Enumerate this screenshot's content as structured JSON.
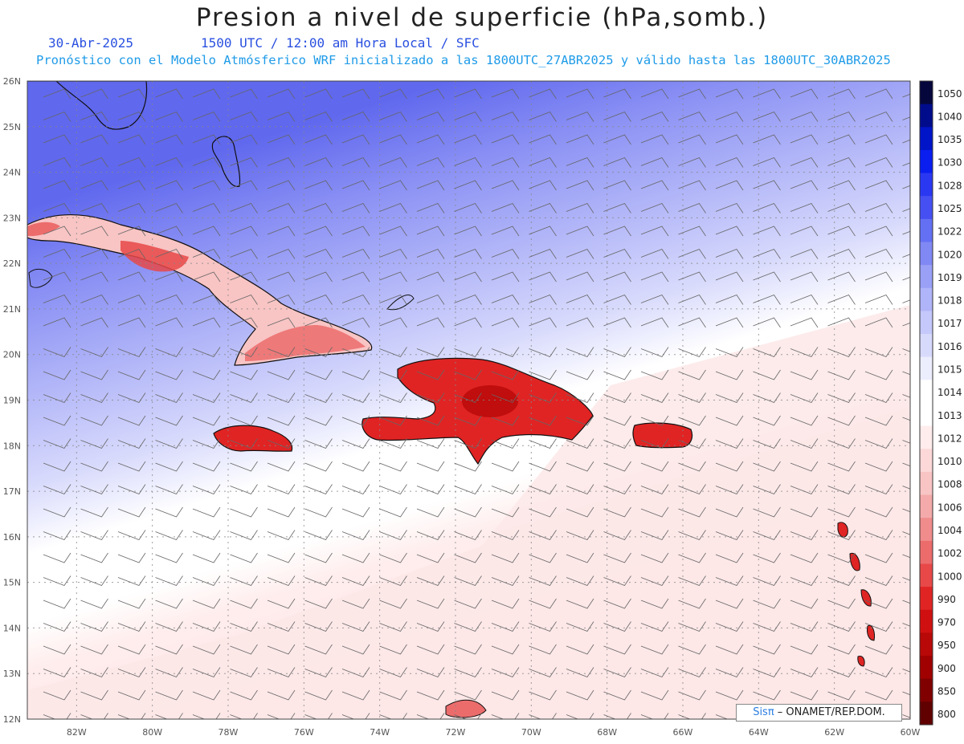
{
  "header": {
    "title": "Presion a nivel de superficie (hPa,somb.)",
    "date": "30-Abr-2025",
    "time_info": "1500 UTC / 12:00 am Hora Local / SFC",
    "forecast_info": "Pronóstico con el Modelo Atmósferico WRF inicializado a las 1800UTC_27ABR2025 y válido hasta las  1800UTC_30ABR2025"
  },
  "map": {
    "lat_labels": [
      "26N",
      "25N",
      "24N",
      "23N",
      "22N",
      "21N",
      "20N",
      "19N",
      "18N",
      "17N",
      "16N",
      "15N",
      "14N",
      "13N",
      "12N"
    ],
    "lon_labels": [
      "82W",
      "80W",
      "78W",
      "76W",
      "74W",
      "72W",
      "70W",
      "68W",
      "66W",
      "64W",
      "62W",
      "60W"
    ],
    "lat_range": [
      12,
      26
    ],
    "lon_range": [
      -83.3,
      -60
    ],
    "grid": "dotted",
    "wind_barbs": true
  },
  "colorbar": {
    "labels": [
      "1050",
      "1040",
      "1035",
      "1030",
      "1028",
      "1025",
      "1022",
      "1020",
      "1019",
      "1018",
      "1017",
      "1016",
      "1015",
      "1014",
      "1013",
      "1012",
      "1010",
      "1008",
      "1006",
      "1004",
      "1002",
      "1000",
      "990",
      "970",
      "950",
      "900",
      "850",
      "800"
    ],
    "colors": [
      "#05063c",
      "#000c8c",
      "#0014c8",
      "#0a1ef0",
      "#2a38f2",
      "#4650f2",
      "#6470f4",
      "#8088f4",
      "#9aa0f6",
      "#b0b4f8",
      "#c4c8fa",
      "#d8dafc",
      "#eceefe",
      "#ffffff",
      "#ffffff",
      "#ffecec",
      "#fcd8d8",
      "#f8c4c4",
      "#f4aaaa",
      "#f08c8c",
      "#ec6c6c",
      "#e84848",
      "#e02424",
      "#d01010",
      "#b80808",
      "#a00000",
      "#800000",
      "#600000"
    ]
  },
  "credit": {
    "brand": "Sisπ",
    "text": " – ONAMET/REP.DOM."
  }
}
